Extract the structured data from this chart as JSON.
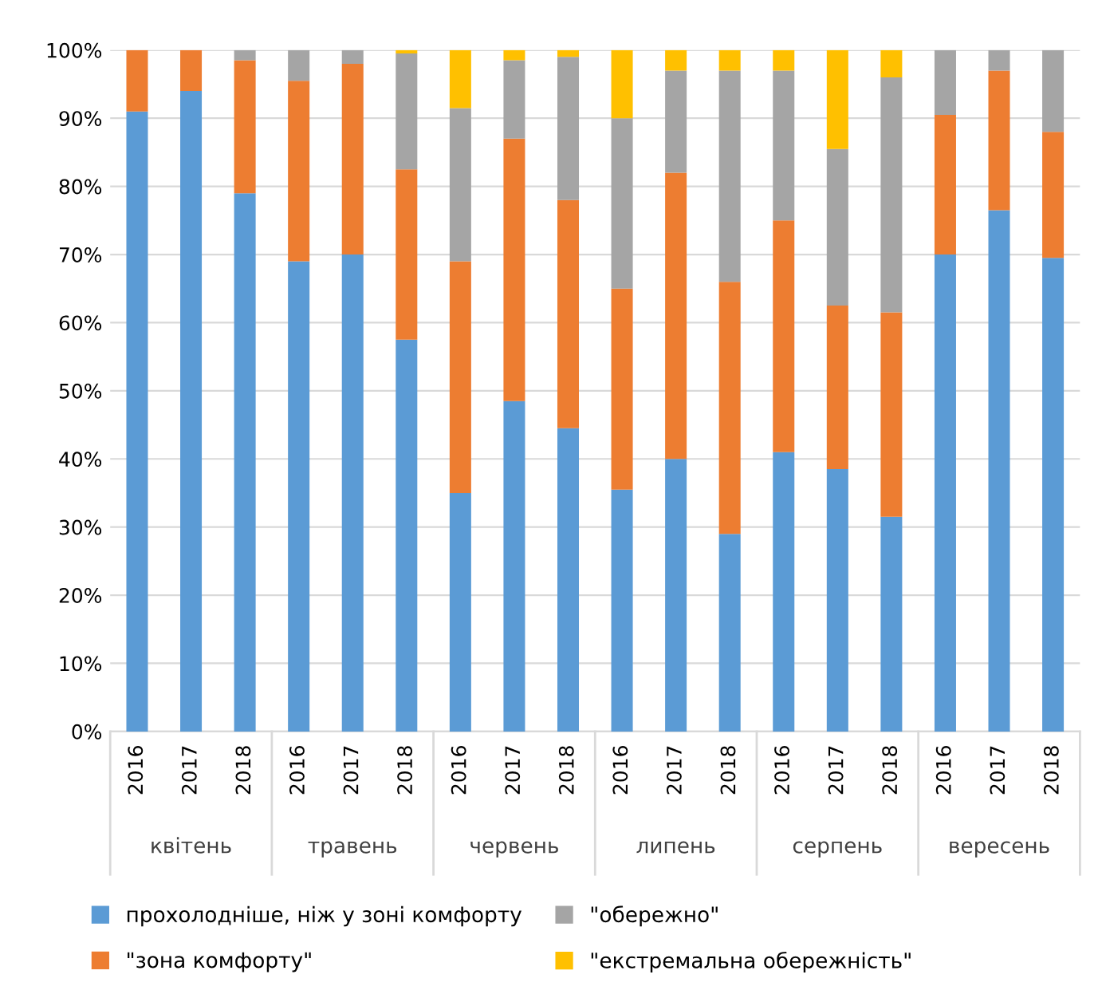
{
  "chart_data": {
    "type": "bar",
    "stacked": true,
    "categories": [
      "2016",
      "2017",
      "2018",
      "2016",
      "2017",
      "2018",
      "2016",
      "2017",
      "2018",
      "2016",
      "2017",
      "2018",
      "2016",
      "2017",
      "2018",
      "2016",
      "2017",
      "2018"
    ],
    "annotations": [
      "квітень",
      "травень",
      "червень",
      "липень",
      "серпень",
      "вересень"
    ],
    "series": [
      {
        "name": "прохолодніше, ніж у зоні комфорту",
        "color": "#5b9bd5",
        "values": [
          91,
          94,
          79,
          69,
          70,
          57.5,
          35,
          48.5,
          44.5,
          35.5,
          40,
          29,
          41,
          38.5,
          31.5,
          70,
          76.5,
          69.5
        ]
      },
      {
        "name": "\"зона комфорту\"",
        "color": "#ed7d31",
        "values": [
          9,
          6,
          19.5,
          26.5,
          28,
          25,
          34,
          38.5,
          33.5,
          29.5,
          42,
          37,
          34,
          24,
          30,
          20.5,
          20.5,
          18.5
        ]
      },
      {
        "name": "\"обережно\"",
        "color": "#a5a5a5",
        "values": [
          0,
          0,
          1.5,
          4.5,
          2,
          17,
          22.5,
          11.5,
          21,
          25,
          15,
          31,
          22,
          23,
          34.5,
          9.5,
          3,
          12
        ]
      },
      {
        "name": "\"екстремальна обережність\"",
        "color": "#ffc000",
        "values": [
          0,
          0,
          0,
          0,
          0,
          0.5,
          8.5,
          1.5,
          1,
          10,
          3,
          3,
          3,
          14.5,
          4,
          0,
          0,
          0
        ]
      }
    ],
    "ylim": [
      0,
      100
    ],
    "yticks": [
      {
        "value": 0,
        "label": "0%"
      },
      {
        "value": 10,
        "label": "10%"
      },
      {
        "value": 20,
        "label": "20%"
      },
      {
        "value": 30,
        "label": "30%"
      },
      {
        "value": 40,
        "label": "40%"
      },
      {
        "value": 50,
        "label": "50%"
      },
      {
        "value": 60,
        "label": "60%"
      },
      {
        "value": 70,
        "label": "70%"
      },
      {
        "value": 80,
        "label": "80%"
      },
      {
        "value": 90,
        "label": "90%"
      },
      {
        "value": 100,
        "label": "100%"
      }
    ],
    "grid": "y",
    "legend": "bottom"
  }
}
